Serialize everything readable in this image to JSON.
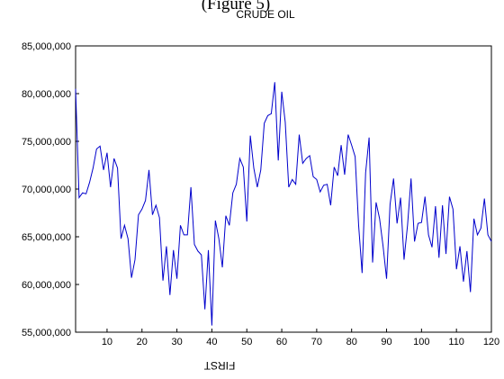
{
  "caption": "(Figure 5)",
  "chart_data": {
    "type": "line",
    "title": "CRUDE OIL",
    "xlabel": "FIRST",
    "ylabel": "",
    "xlim": [
      1,
      120
    ],
    "ylim": [
      55000000,
      85000000
    ],
    "x_ticks": [
      10,
      20,
      30,
      40,
      50,
      60,
      70,
      80,
      90,
      100,
      110,
      120
    ],
    "x_tick_labels": [
      "10",
      "20",
      "30",
      "40",
      "50",
      "60",
      "70",
      "80",
      "90",
      "100",
      "110",
      "120"
    ],
    "y_ticks": [
      55000000,
      60000000,
      65000000,
      70000000,
      75000000,
      80000000,
      85000000
    ],
    "y_tick_labels": [
      "55,000,000",
      "60,000,000",
      "65,000,000",
      "70,000,000",
      "75,000,000",
      "80,000,000",
      "85,000,000"
    ],
    "grid": false,
    "line_color": "#0000cc",
    "series": [
      {
        "values": [
          80500000,
          69100000,
          69600000,
          69500000,
          70700000,
          72200000,
          74200000,
          74500000,
          72000000,
          73800000,
          70200000,
          73200000,
          72200000,
          64800000,
          66200000,
          64800000,
          60700000,
          62600000,
          67300000,
          67900000,
          68800000,
          72000000,
          67300000,
          68300000,
          67000000,
          60400000,
          64000000,
          58900000,
          63600000,
          60600000,
          66200000,
          65200000,
          65200000,
          70200000,
          64200000,
          63500000,
          63100000,
          57400000,
          63600000,
          55700000,
          66700000,
          64800000,
          61800000,
          67200000,
          66200000,
          69600000,
          70500000,
          73200000,
          72300000,
          66600000,
          75600000,
          72200000,
          70200000,
          72000000,
          76900000,
          77700000,
          77900000,
          81200000,
          73000000,
          80200000,
          77000000,
          70200000,
          71000000,
          70500000,
          75700000,
          72700000,
          73200000,
          73500000,
          71300000,
          71000000,
          69700000,
          70400000,
          70500000,
          68300000,
          72300000,
          71400000,
          74600000,
          71500000,
          75700000,
          74600000,
          73400000,
          66200000,
          61200000,
          71700000,
          75400000,
          62300000,
          68600000,
          66900000,
          64000000,
          60600000,
          68400000,
          71100000,
          66400000,
          69100000,
          62600000,
          66200000,
          71100000,
          64500000,
          66400000,
          66500000,
          69200000,
          65200000,
          63900000,
          68200000,
          62800000,
          68300000,
          63200000,
          69200000,
          67900000,
          61600000,
          64000000,
          60300000,
          63500000,
          59200000,
          66900000,
          65200000,
          65900000,
          69000000,
          65200000,
          64500000
        ]
      }
    ]
  }
}
